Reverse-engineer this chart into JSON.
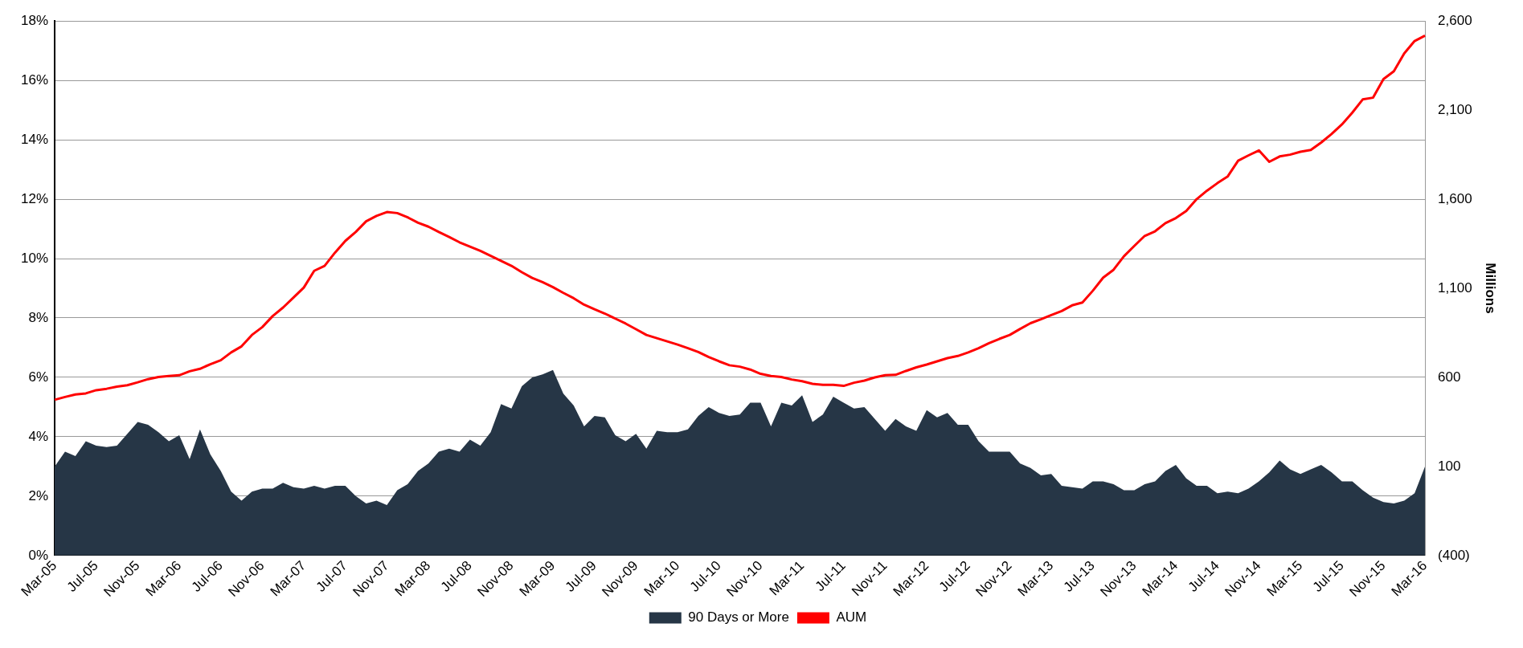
{
  "chart_data": {
    "type": "line",
    "categories": [
      "Mar-05",
      null,
      null,
      null,
      "Jul-05",
      null,
      null,
      null,
      "Nov-05",
      null,
      null,
      null,
      "Mar-06",
      null,
      null,
      null,
      "Jul-06",
      null,
      null,
      null,
      "Nov-06",
      null,
      null,
      null,
      "Mar-07",
      null,
      null,
      null,
      "Jul-07",
      null,
      null,
      null,
      "Nov-07",
      null,
      null,
      null,
      "Mar-08",
      null,
      null,
      null,
      "Jul-08",
      null,
      null,
      null,
      "Nov-08",
      null,
      null,
      null,
      "Mar-09",
      null,
      null,
      null,
      "Jul-09",
      null,
      null,
      null,
      "Nov-09",
      null,
      null,
      null,
      "Mar-10",
      null,
      null,
      null,
      "Jul-10",
      null,
      null,
      null,
      "Nov-10",
      null,
      null,
      null,
      "Mar-11",
      null,
      null,
      null,
      "Jul-11",
      null,
      null,
      null,
      "Nov-11",
      null,
      null,
      null,
      "Mar-12",
      null,
      null,
      null,
      "Jul-12",
      null,
      null,
      null,
      "Nov-12",
      null,
      null,
      null,
      "Mar-13",
      null,
      null,
      null,
      "Jul-13",
      null,
      null,
      null,
      "Nov-13",
      null,
      null,
      null,
      "Mar-14",
      null,
      null,
      null,
      "Jul-14",
      null,
      null,
      null,
      "Nov-14",
      null,
      null,
      null,
      "Mar-15",
      null,
      null,
      null,
      "Jul-15",
      null,
      null,
      null,
      "Nov-15",
      null,
      null,
      null,
      "Mar-16"
    ],
    "series": [
      {
        "name": "90 Days or More",
        "type": "area",
        "color": "#263646",
        "values": [
          3.0,
          3.5,
          3.35,
          3.85,
          3.7,
          3.65,
          3.7,
          4.1,
          4.5,
          4.4,
          4.15,
          3.85,
          4.05,
          3.25,
          4.25,
          3.4,
          2.85,
          2.15,
          1.85,
          2.15,
          2.25,
          2.25,
          2.45,
          2.3,
          2.25,
          2.35,
          2.25,
          2.35,
          2.35,
          2.0,
          1.75,
          1.85,
          1.7,
          2.2,
          2.4,
          2.85,
          3.1,
          3.5,
          3.6,
          3.5,
          3.9,
          3.7,
          4.15,
          5.1,
          4.95,
          5.7,
          6.0,
          6.1,
          6.25,
          5.45,
          5.05,
          4.35,
          4.7,
          4.65,
          4.05,
          3.85,
          4.1,
          3.6,
          4.2,
          4.15,
          4.15,
          4.25,
          4.7,
          5.0,
          4.8,
          4.7,
          4.75,
          5.15,
          5.15,
          4.35,
          5.15,
          5.05,
          5.4,
          4.5,
          4.75,
          5.35,
          5.15,
          4.95,
          5.0,
          4.6,
          4.2,
          4.6,
          4.35,
          4.2,
          4.9,
          4.65,
          4.8,
          4.4,
          4.4,
          3.85,
          3.5,
          3.5,
          3.5,
          3.1,
          2.95,
          2.7,
          2.75,
          2.35,
          2.3,
          2.25,
          2.5,
          2.5,
          2.4,
          2.2,
          2.2,
          2.4,
          2.5,
          2.85,
          3.05,
          2.6,
          2.35,
          2.35,
          2.1,
          2.15,
          2.1,
          2.25,
          2.5,
          2.8,
          3.2,
          2.9,
          2.75,
          2.9,
          3.05,
          2.8,
          2.5,
          2.5,
          2.2,
          1.95,
          1.8,
          1.75,
          1.85,
          2.1,
          3.0
        ]
      },
      {
        "name": "AUM",
        "type": "line",
        "axis": "y2",
        "color": "#ff0000",
        "values": [
          474,
          490,
          504,
          510,
          528,
          536,
          548,
          556,
          572,
          590,
          602,
          608,
          612,
          634,
          648,
          674,
          696,
          740,
          774,
          838,
          882,
          944,
          992,
          1048,
          1104,
          1198,
          1226,
          1300,
          1366,
          1416,
          1476,
          1506,
          1528,
          1522,
          1498,
          1468,
          1446,
          1416,
          1388,
          1358,
          1334,
          1310,
          1282,
          1254,
          1226,
          1190,
          1158,
          1134,
          1106,
          1074,
          1044,
          1008,
          982,
          958,
          930,
          902,
          870,
          838,
          820,
          802,
          784,
          764,
          742,
          714,
          690,
          668,
          660,
          644,
          620,
          608,
          602,
          588,
          578,
          564,
          558,
          558,
          552,
          570,
          582,
          600,
          612,
          614,
          636,
          656,
          672,
          690,
          708,
          720,
          740,
          764,
          792,
          816,
          838,
          872,
          904,
          926,
          950,
          972,
          1004,
          1020,
          1086,
          1160,
          1204,
          1280,
          1338,
          1394,
          1420,
          1466,
          1494,
          1534,
          1600,
          1648,
          1690,
          1728,
          1816,
          1846,
          1874,
          1810,
          1840,
          1850,
          1866,
          1876,
          1918,
          1966,
          2020,
          2086,
          2160,
          2170,
          2274,
          2318,
          2418,
          2488,
          2518
        ]
      }
    ],
    "ylim": [
      0,
      18
    ],
    "yticks": [
      {
        "value": 0,
        "label": "0%"
      },
      {
        "value": 2,
        "label": "2%"
      },
      {
        "value": 4,
        "label": "4%"
      },
      {
        "value": 6,
        "label": "6%"
      },
      {
        "value": 8,
        "label": "8%"
      },
      {
        "value": 10,
        "label": "10%"
      },
      {
        "value": 12,
        "label": "12%"
      },
      {
        "value": 14,
        "label": "14%"
      },
      {
        "value": 16,
        "label": "16%"
      },
      {
        "value": 18,
        "label": "18%"
      }
    ],
    "y2lim": [
      -400,
      2600
    ],
    "y2ticks": [
      {
        "value": -400,
        "label": "(400)"
      },
      100,
      600,
      {
        "value": 1100,
        "label": "1,100"
      },
      {
        "value": 1600,
        "label": "1,600"
      },
      {
        "value": 2100,
        "label": "2,100"
      },
      {
        "value": 2600,
        "label": "2,600"
      }
    ],
    "y2label": "Millions",
    "grid": "y",
    "legend": "bottom",
    "marker": "none"
  }
}
